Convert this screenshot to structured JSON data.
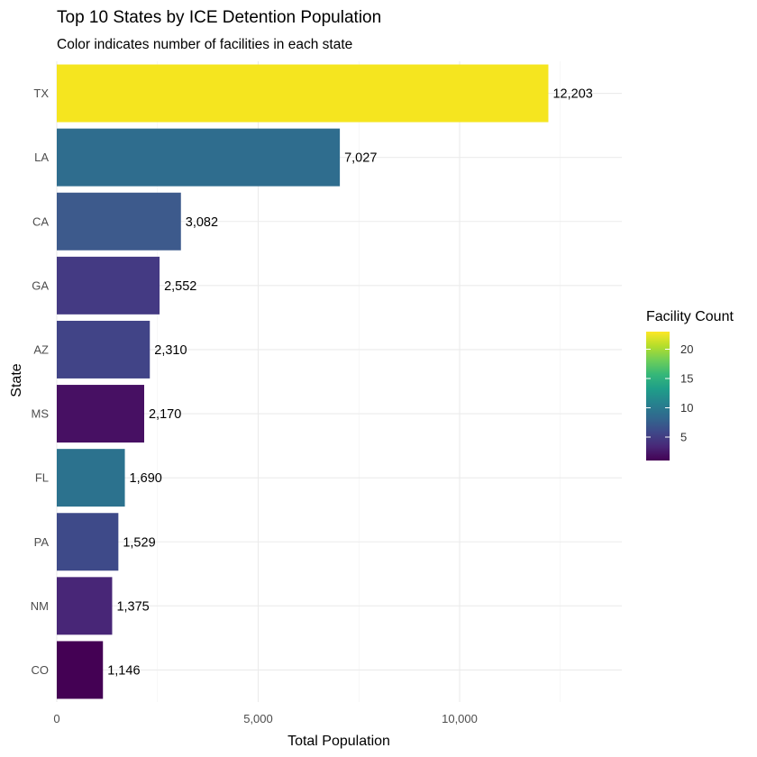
{
  "chart_data": {
    "type": "bar",
    "orientation": "horizontal",
    "title": "Top 10 States by ICE Detention Population",
    "subtitle": "Color indicates number of facilities in each state",
    "xlabel": "Total Population",
    "ylabel": "State",
    "categories": [
      "TX",
      "LA",
      "CA",
      "GA",
      "AZ",
      "MS",
      "FL",
      "PA",
      "NM",
      "CO"
    ],
    "values": [
      12203,
      7027,
      3082,
      2552,
      2310,
      2170,
      1690,
      1529,
      1375,
      1146
    ],
    "value_labels": [
      "12,203",
      "7,027",
      "3,082",
      "2,552",
      "2,310",
      "2,170",
      "1,690",
      "1,529",
      "1,375",
      "1,146"
    ],
    "bar_colors": [
      "#f5e51f",
      "#2f6d8e",
      "#3d5a8c",
      "#443a83",
      "#414487",
      "#471063",
      "#2c728e",
      "#3e4a89",
      "#482677",
      "#440154"
    ],
    "xlim": [
      0,
      14000
    ],
    "x_ticks": [
      0,
      5000,
      10000
    ],
    "x_tick_labels": [
      "0",
      "5,000",
      "10,000"
    ],
    "grid": true,
    "legend": {
      "title": "Facility Count",
      "placement": "right",
      "colormap": "viridis",
      "range": [
        1,
        23
      ],
      "ticks": [
        5,
        10,
        15,
        20
      ],
      "tick_labels": [
        "5",
        "10",
        "15",
        "20"
      ],
      "gradient_stops": [
        "#440154",
        "#482878",
        "#3e4989",
        "#31688e",
        "#26828e",
        "#1f9e89",
        "#35b779",
        "#6ece58",
        "#b5de2b",
        "#fde725"
      ]
    }
  }
}
